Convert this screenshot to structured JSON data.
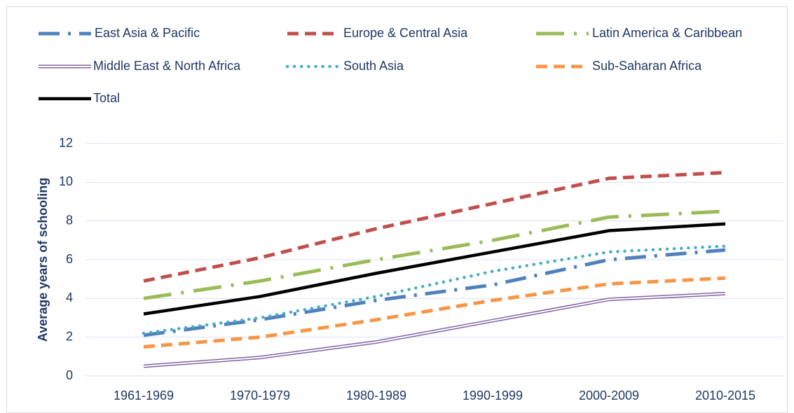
{
  "chart_data": {
    "type": "line",
    "y_label": "Average years of schooling",
    "categories": [
      "1961-1969",
      "1970-1979",
      "1980-1989",
      "1990-1999",
      "2000-2009",
      "2010-2015"
    ],
    "series": [
      {
        "name": "East Asia & Pacific",
        "color": "#4f81bd",
        "line_style": "dash-dot",
        "values": [
          2.1,
          2.9,
          3.9,
          4.7,
          6.0,
          6.5
        ]
      },
      {
        "name": "Europe & Central Asia",
        "color": "#c0504d",
        "line_style": "dash",
        "values": [
          4.9,
          6.1,
          7.6,
          8.9,
          10.2,
          10.5
        ]
      },
      {
        "name": "Latin America & Caribbean",
        "color": "#9bbb59",
        "line_style": "long-dash-dot",
        "values": [
          4.0,
          4.9,
          6.0,
          7.0,
          8.2,
          8.5
        ]
      },
      {
        "name": "Middle East & North Africa",
        "color": "#8064a2",
        "line_style": "double",
        "values": [
          0.5,
          0.95,
          1.75,
          2.85,
          3.95,
          4.25
        ]
      },
      {
        "name": "South Asia",
        "color": "#4bacc6",
        "line_style": "dot",
        "values": [
          2.2,
          3.0,
          4.1,
          5.4,
          6.4,
          6.7
        ]
      },
      {
        "name": "Sub-Saharan Africa",
        "color": "#f79646",
        "line_style": "dash",
        "values": [
          1.5,
          2.0,
          2.9,
          3.9,
          4.75,
          5.05
        ]
      },
      {
        "name": "Total",
        "color": "#000000",
        "line_style": "solid",
        "values": [
          3.2,
          4.1,
          5.3,
          6.4,
          7.5,
          7.85
        ]
      }
    ],
    "ylim": [
      0,
      12
    ],
    "yticks": [
      0,
      2,
      4,
      6,
      8,
      10,
      12
    ],
    "grid": true,
    "legend": "top"
  }
}
